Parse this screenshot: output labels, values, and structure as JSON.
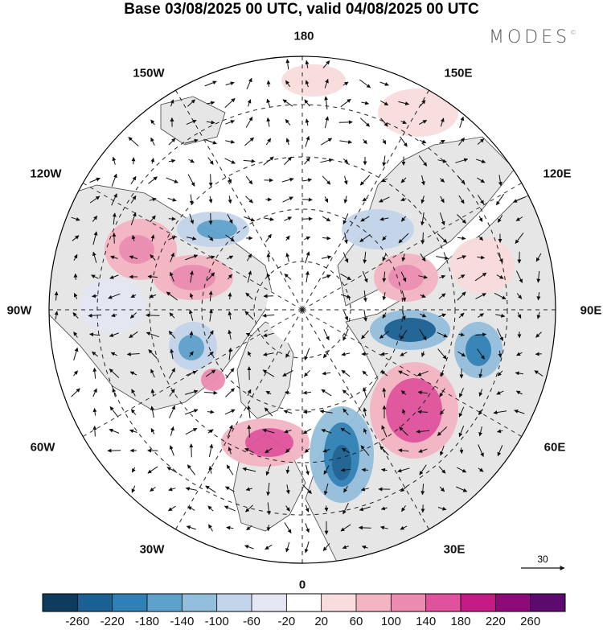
{
  "title": "Base 03/08/2025 00 UTC, valid 04/08/2025 00 UTC",
  "brand": "MODES",
  "brand_mark": "©",
  "longitude_labels": {
    "top": "180",
    "bottom": "0",
    "left": "90W",
    "right": "90E",
    "upper_left": "150W",
    "upper_right": "150E",
    "mid_left_top": "120W",
    "mid_right_top": "120E",
    "mid_left_bottom": "60W",
    "mid_right_bottom": "60E",
    "lower_left": "30W",
    "lower_right": "30E"
  },
  "vector_reference": "30",
  "colorbar": {
    "ticks": [
      "-260",
      "-220",
      "-180",
      "-140",
      "-100",
      "-60",
      "-20",
      "20",
      "60",
      "100",
      "140",
      "180",
      "220",
      "260"
    ],
    "colors": [
      "#0f3b5c",
      "#1a6092",
      "#2f81b5",
      "#5ea1cb",
      "#94bfdc",
      "#c3d5ea",
      "#e4e6f3",
      "#ffffff",
      "#f9dcdc",
      "#f3b5c2",
      "#ec8bb0",
      "#e0529c",
      "#c41c84",
      "#8e0a78",
      "#5d0a6e"
    ]
  },
  "colors": {
    "land": "#e8e8e8",
    "ocean": "#ffffff",
    "coast": "#444444",
    "grid": "#222222"
  }
}
